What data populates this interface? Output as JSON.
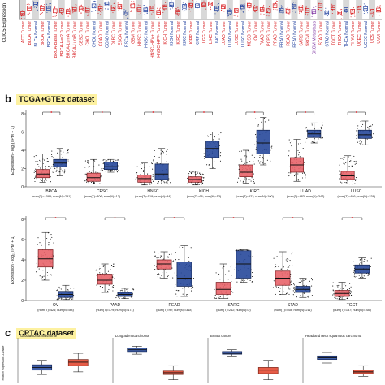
{
  "panel_a": {
    "ylabel": "CLIC5 Expression",
    "categories": [
      "ACC Tumor",
      "BLCA Tumor",
      "BLCA Normal",
      "BRCA Tumor",
      "BRCA Normal",
      "BRCA-Basal Tumor",
      "BRCA-Her2 Tumor",
      "BRCA-LumA Tumor",
      "BRCA-LumB Tumor",
      "CESC Tumor",
      "CHOL Tumor",
      "CHOL Normal",
      "COAD Tumor",
      "COAD Normal",
      "DLBC Tumor",
      "ESCA Tumor",
      "ESCA Normal",
      "GBM Tumor",
      "HNSC Tumor",
      "HNSC Normal",
      "HNSC-HPV+ Tumor",
      "HNSC-HPV- Tumor",
      "KICH Tumor",
      "KICH Normal",
      "KIRC Tumor",
      "KIRC Normal",
      "KIRP Tumor",
      "KIRP Normal",
      "LGG Tumor",
      "LIHC Tumor",
      "LIHC Normal",
      "LUAD Tumor",
      "LUAD Normal",
      "LUSC Tumor",
      "LUSC Normal",
      "MESO Tumor",
      "OV Tumor",
      "PAAD Tumor",
      "PCPG Tumor",
      "PRAD Tumor",
      "PRAD Normal",
      "READ Tumor",
      "READ Normal",
      "SARC Tumor",
      "SKCM Tumor",
      "SKCM Metastasis",
      "STAD Tumor",
      "STAD Normal",
      "TGCT Tumor",
      "THCA Tumor",
      "THCA Normal",
      "THYM Tumor",
      "UCEC Tumor",
      "UCEC Normal",
      "UCS Tumor",
      "UVM Tumor"
    ],
    "colors": {
      "tumor": "#d7191c",
      "normal": "#1f3f9e",
      "metastasis": "#7b2fa0",
      "shade": "#d8d8d8"
    }
  },
  "panel_b": {
    "letter": "b",
    "title": "TCGA+GTEx dataset",
    "ylabel": "Expression - log₂(TPM + 1)",
    "colors": {
      "tumor": "#e8646a",
      "normal": "#27489a",
      "sig": "#e0242b"
    },
    "row1": {
      "ylim": [
        0,
        8
      ],
      "yticks": [
        0,
        2,
        4,
        6,
        8
      ],
      "groups": [
        {
          "name": "BRCA",
          "count": "(num(T)=1085; num(N)=291)",
          "tumor": [
            0.5,
            1.0,
            1.4,
            1.9,
            3.6
          ],
          "normal": [
            1.2,
            2.2,
            2.6,
            3.0,
            4.2
          ]
        },
        {
          "name": "CESC",
          "count": "(num(T)=306; num(N)=13)",
          "tumor": [
            0.3,
            0.6,
            1.0,
            1.5,
            3.0
          ],
          "normal": [
            1.6,
            1.9,
            2.2,
            2.7,
            3.0
          ]
        },
        {
          "name": "HNSC",
          "count": "(num(T)=519; num(N)=44)",
          "tumor": [
            0.2,
            0.5,
            0.9,
            1.3,
            2.6
          ],
          "normal": [
            0.3,
            0.8,
            1.4,
            2.5,
            4.2
          ]
        },
        {
          "name": "KICH",
          "count": "(num(T)=66; num(N)=53)",
          "tumor": [
            0.2,
            0.5,
            0.8,
            1.1,
            1.7
          ],
          "normal": [
            2.0,
            3.2,
            4.2,
            5.0,
            6.0
          ]
        },
        {
          "name": "KIRC",
          "count": "(num(T)=523; num(N)=100)",
          "tumor": [
            0.4,
            1.1,
            1.6,
            2.4,
            4.0
          ],
          "normal": [
            2.4,
            3.6,
            4.8,
            6.2,
            7.6
          ]
        },
        {
          "name": "LUAD",
          "count": "(num(T)=483; num(N)=347)",
          "tumor": [
            0.6,
            1.6,
            2.4,
            3.2,
            5.2
          ],
          "normal": [
            4.8,
            5.4,
            5.8,
            6.2,
            7.0
          ]
        },
        {
          "name": "LUSC",
          "count": "(num(T)=486; num(N)=338)",
          "tumor": [
            0.3,
            0.8,
            1.2,
            1.7,
            3.4
          ],
          "normal": [
            4.6,
            5.3,
            5.7,
            6.2,
            7.2
          ]
        }
      ]
    },
    "row2": {
      "ylim": [
        0,
        8
      ],
      "yticks": [
        0,
        2,
        4,
        6,
        8
      ],
      "groups": [
        {
          "name": "OV",
          "count": "(num(T)=426; num(N)=88)",
          "tumor": [
            2.0,
            3.3,
            4.1,
            5.0,
            6.7
          ],
          "normal": [
            0.1,
            0.3,
            0.6,
            0.9,
            1.5
          ]
        },
        {
          "name": "PAAD",
          "count": "(num(T)=179; num(N)=171)",
          "tumor": [
            0.8,
            1.6,
            2.0,
            2.6,
            3.6
          ],
          "normal": [
            0.2,
            0.4,
            0.6,
            0.8,
            1.2
          ]
        },
        {
          "name": "READ",
          "count": "(num(T)=92; num(N)=318)",
          "tumor": [
            2.2,
            3.1,
            3.6,
            4.0,
            4.8
          ],
          "normal": [
            0.4,
            1.4,
            2.2,
            3.8,
            5.4
          ]
        },
        {
          "name": "SARC",
          "count": "(num(T)=262; num(N)=2)",
          "tumor": [
            0.2,
            0.6,
            1.1,
            1.8,
            3.6
          ],
          "normal": [
            1.8,
            2.2,
            3.6,
            4.9,
            5.0
          ]
        },
        {
          "name": "STAD",
          "count": "(num(T)=408; num(N)=211)",
          "tumor": [
            0.6,
            1.5,
            2.2,
            2.9,
            4.8
          ],
          "normal": [
            0.3,
            0.8,
            1.1,
            1.4,
            2.2
          ]
        },
        {
          "name": "TGCT",
          "count": "(num(T)=137; num(N)=165)",
          "tumor": [
            0.1,
            0.4,
            0.7,
            1.0,
            1.8
          ],
          "normal": [
            2.2,
            2.7,
            3.1,
            3.5,
            4.2
          ]
        }
      ]
    }
  },
  "panel_c": {
    "letter": "c",
    "title": "CPTAC dataset",
    "ylabel": "Protein expression Z-value",
    "colors": {
      "normal": "#2c4fa0",
      "tumor": "#e34a33"
    },
    "subplots": [
      {
        "title": "Glioblastoma multiforme",
        "tumor": [
          -0.9,
          -0.2,
          0.2,
          0.5,
          1.2
        ],
        "normal": [
          -1.2,
          -0.7,
          -0.4,
          -0.1,
          0.4
        ]
      },
      {
        "title": "Lung adenocarcinoma",
        "tumor": [
          -1.8,
          -1.2,
          -1.0,
          -0.8,
          -0.2
        ],
        "normal": [
          1.1,
          1.4,
          1.6,
          1.8,
          2.0
        ]
      },
      {
        "title": "Breast cancer",
        "tumor": [
          -1.8,
          -1.1,
          -0.7,
          -0.4,
          0.4
        ],
        "normal": [
          0.9,
          1.1,
          1.2,
          1.4,
          1.6
        ]
      },
      {
        "title": "Head and neck squamous carcinoma",
        "tumor": [
          -1.4,
          -1.1,
          -0.9,
          -0.7,
          -0.2
        ],
        "normal": [
          0.1,
          0.5,
          0.7,
          0.9,
          1.3
        ]
      }
    ],
    "ylim": [
      -2.2,
      2.4
    ]
  }
}
